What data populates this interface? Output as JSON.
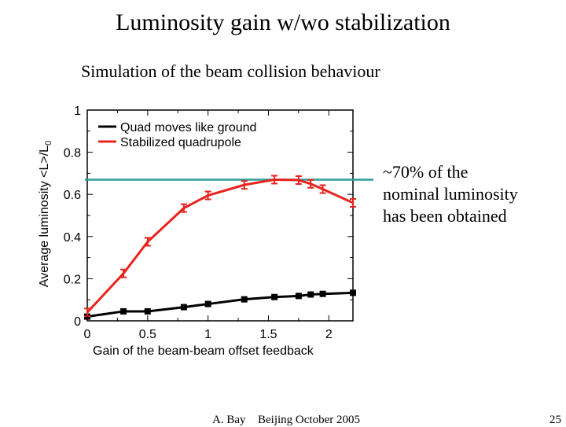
{
  "slide": {
    "title": "Luminosity gain w/wo stabilization",
    "subtitle": "Simulation of the beam collision behaviour",
    "annotation_lines": [
      "~70% of the",
      "nominal luminosity",
      "has been obtained"
    ],
    "footer": {
      "author": "A. Bay",
      "event": "Beijing October 2005",
      "page": "25"
    }
  },
  "chart_data": {
    "type": "line",
    "title": "",
    "xlabel": "Gain of the beam-beam offset feedback",
    "ylabel": "Average luminosity <L>/L",
    "ylabel_subscript": "0",
    "xlim": [
      0,
      2.2
    ],
    "ylim": [
      0,
      1
    ],
    "xticks": [
      0,
      0.5,
      1,
      1.5,
      2
    ],
    "xtick_labels": [
      "0",
      "0.5",
      "1",
      "1.5",
      "2"
    ],
    "yticks": [
      0,
      0.2,
      0.4,
      0.6,
      0.8,
      1
    ],
    "ytick_labels": [
      "0",
      "0.2",
      "0.4",
      "0.6",
      "0.8",
      "1"
    ],
    "grid": false,
    "legend_position": "top-left",
    "reference_line": {
      "y": 0.67,
      "color": "#2a9b96"
    },
    "series": [
      {
        "name": "Quad moves like ground",
        "color": "#000000",
        "marker": "square",
        "x": [
          0,
          0.3,
          0.5,
          0.8,
          1.0,
          1.3,
          1.55,
          1.75,
          1.85,
          1.95,
          2.2
        ],
        "y": [
          0.02,
          0.045,
          0.045,
          0.065,
          0.08,
          0.102,
          0.113,
          0.118,
          0.125,
          0.128,
          0.133
        ]
      },
      {
        "name": "Stabilized quadrupole",
        "color": "#e8231f",
        "marker": "errorbar",
        "x": [
          0,
          0.3,
          0.5,
          0.8,
          1.0,
          1.3,
          1.55,
          1.75,
          1.85,
          1.95,
          2.2
        ],
        "y": [
          0.04,
          0.225,
          0.375,
          0.535,
          0.595,
          0.645,
          0.67,
          0.668,
          0.65,
          0.625,
          0.56
        ]
      }
    ]
  }
}
